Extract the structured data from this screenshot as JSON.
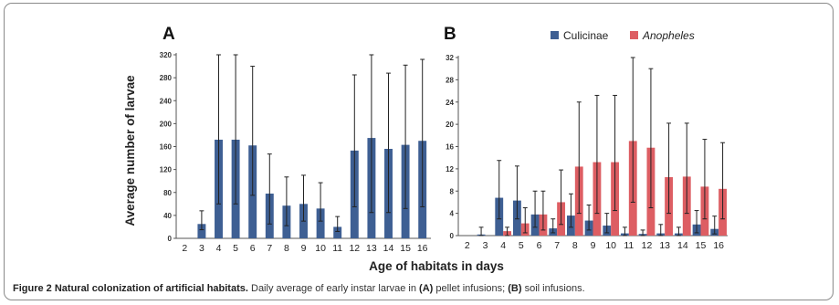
{
  "figure": {
    "caption_title": "Figure 2 Natural colonization of artificial habitats.",
    "caption_text_1": " Daily average of early instar larvae in ",
    "caption_a": "(A)",
    "caption_text_2": " pellet infusions; ",
    "caption_b": "(B)",
    "caption_text_3": " soil infusions."
  },
  "colors": {
    "culicinae": "#3e5f93",
    "anopheles": "#dd5e63",
    "error": "#222222",
    "axis": "#555555"
  },
  "chart_data": [
    {
      "panel": "A",
      "type": "bar",
      "ylabel": "Average number of larvae",
      "xlabel": "Age of habitats in days",
      "ylim": [
        0,
        320
      ],
      "yticks": [
        "0",
        "40",
        "80",
        "120",
        "160",
        "200",
        "240",
        "280",
        "320"
      ],
      "categories": [
        "2",
        "3",
        "4",
        "5",
        "6",
        "7",
        "8",
        "9",
        "10",
        "11",
        "12",
        "13",
        "14",
        "15",
        "16"
      ],
      "series": [
        {
          "values": [
            0,
            25,
            172,
            172,
            162,
            78,
            57,
            60,
            52,
            20,
            153,
            175,
            156,
            163,
            170
          ],
          "err_upper": [
            0,
            48,
            320,
            320,
            300,
            147,
            107,
            110,
            97,
            38,
            285,
            320,
            288,
            302,
            312
          ],
          "err_lower": [
            0,
            15,
            60,
            60,
            75,
            25,
            22,
            30,
            30,
            12,
            55,
            45,
            45,
            52,
            55
          ]
        }
      ]
    },
    {
      "panel": "B",
      "type": "bar",
      "xlabel": "",
      "ylim": [
        0,
        32
      ],
      "yticks": [
        "0",
        "4",
        "8",
        "12",
        "16",
        "20",
        "24",
        "28",
        "32"
      ],
      "categories": [
        "2",
        "3",
        "4",
        "5",
        "6",
        "7",
        "8",
        "9",
        "10",
        "11",
        "12",
        "13",
        "14",
        "15",
        "16"
      ],
      "series": [
        {
          "name": "Culicinae",
          "values": [
            0,
            0.2,
            6.8,
            6.3,
            3.8,
            1.3,
            3.6,
            2.7,
            1.8,
            0.4,
            0.3,
            0.4,
            0.4,
            2.0,
            1.2
          ],
          "err_upper": [
            0,
            1.5,
            13.5,
            12.5,
            8.0,
            3.0,
            7.5,
            5.5,
            4.0,
            1.5,
            1.0,
            2.0,
            1.5,
            4.5,
            3.5
          ],
          "err_lower": [
            0,
            0,
            3.0,
            3.0,
            1.5,
            0.5,
            1.5,
            1.0,
            0.5,
            0,
            0,
            0,
            0,
            0.5,
            0.3
          ]
        },
        {
          "name": "Anopheles",
          "values": [
            0,
            0,
            0.8,
            2.2,
            3.8,
            6.0,
            12.4,
            13.2,
            13.2,
            17.0,
            15.8,
            10.5,
            10.6,
            8.8,
            8.4
          ],
          "err_upper": [
            0,
            0,
            1.5,
            5.0,
            8.0,
            11.8,
            24.0,
            25.2,
            25.2,
            32.0,
            30.0,
            20.2,
            20.2,
            17.3,
            16.7
          ],
          "err_lower": [
            0,
            0,
            0,
            0.5,
            1.0,
            2.0,
            4.0,
            4.0,
            4.5,
            6.0,
            5.0,
            4.0,
            4.0,
            3.0,
            3.0
          ]
        }
      ]
    }
  ]
}
